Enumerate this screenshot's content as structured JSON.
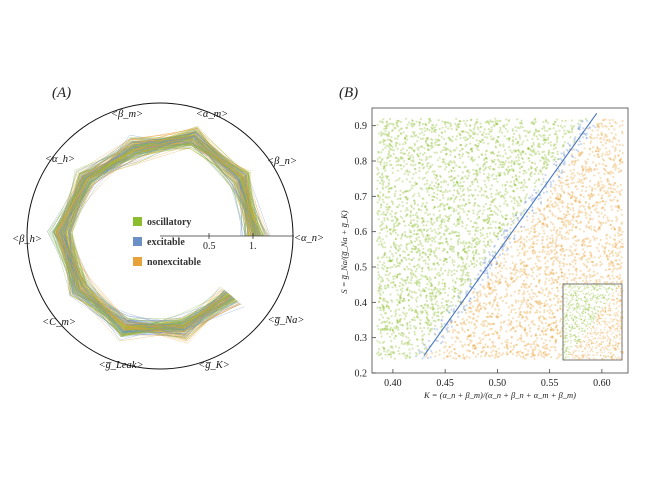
{
  "figure": {
    "panel_a_label": "(A)",
    "panel_b_label": "(B)"
  },
  "radar": {
    "parameters": [
      "<α_m>",
      "<β_n>",
      "<α_n>",
      "<g̅_Na>",
      "<g̅_K>",
      "<g̅_Leak>",
      "<C_m>",
      "<β_h>",
      "<α_h>",
      "<β_m>"
    ],
    "radial_ticks": [
      "0.5",
      "1."
    ],
    "legend": [
      {
        "label": "oscillatory",
        "color": "#8cbd2f"
      },
      {
        "label": "excitable",
        "color": "#6b8fc7"
      },
      {
        "label": "nonexcitable",
        "color": "#e8a23a"
      }
    ]
  },
  "chart_data": {
    "type": "scatter",
    "xlabel": "K = (α_n + β_m)/(α_n + β_n + α_m + β_m)",
    "ylabel": "S = g̅_Na/(g̅_Na + g̅_K)",
    "xlim": [
      0.38,
      0.625
    ],
    "ylim": [
      0.2,
      0.95
    ],
    "x_ticks": [
      "0.40",
      "0.45",
      "0.50",
      "0.55",
      "0.60"
    ],
    "y_ticks": [
      "0.2",
      "0.3",
      "0.4",
      "0.5",
      "0.6",
      "0.7",
      "0.8",
      "0.9"
    ],
    "series": [
      {
        "name": "oscillatory",
        "color": "#8cbd2f",
        "region": "above boundary line"
      },
      {
        "name": "excitable",
        "color": "#6b8fc7",
        "region": "band along boundary line"
      },
      {
        "name": "nonexcitable",
        "color": "#e8a23a",
        "region": "below boundary line"
      }
    ],
    "boundary_line": {
      "x": [
        0.43,
        0.595
      ],
      "y": [
        0.25,
        0.935
      ],
      "color": "#4a76c2"
    },
    "inset": true
  }
}
